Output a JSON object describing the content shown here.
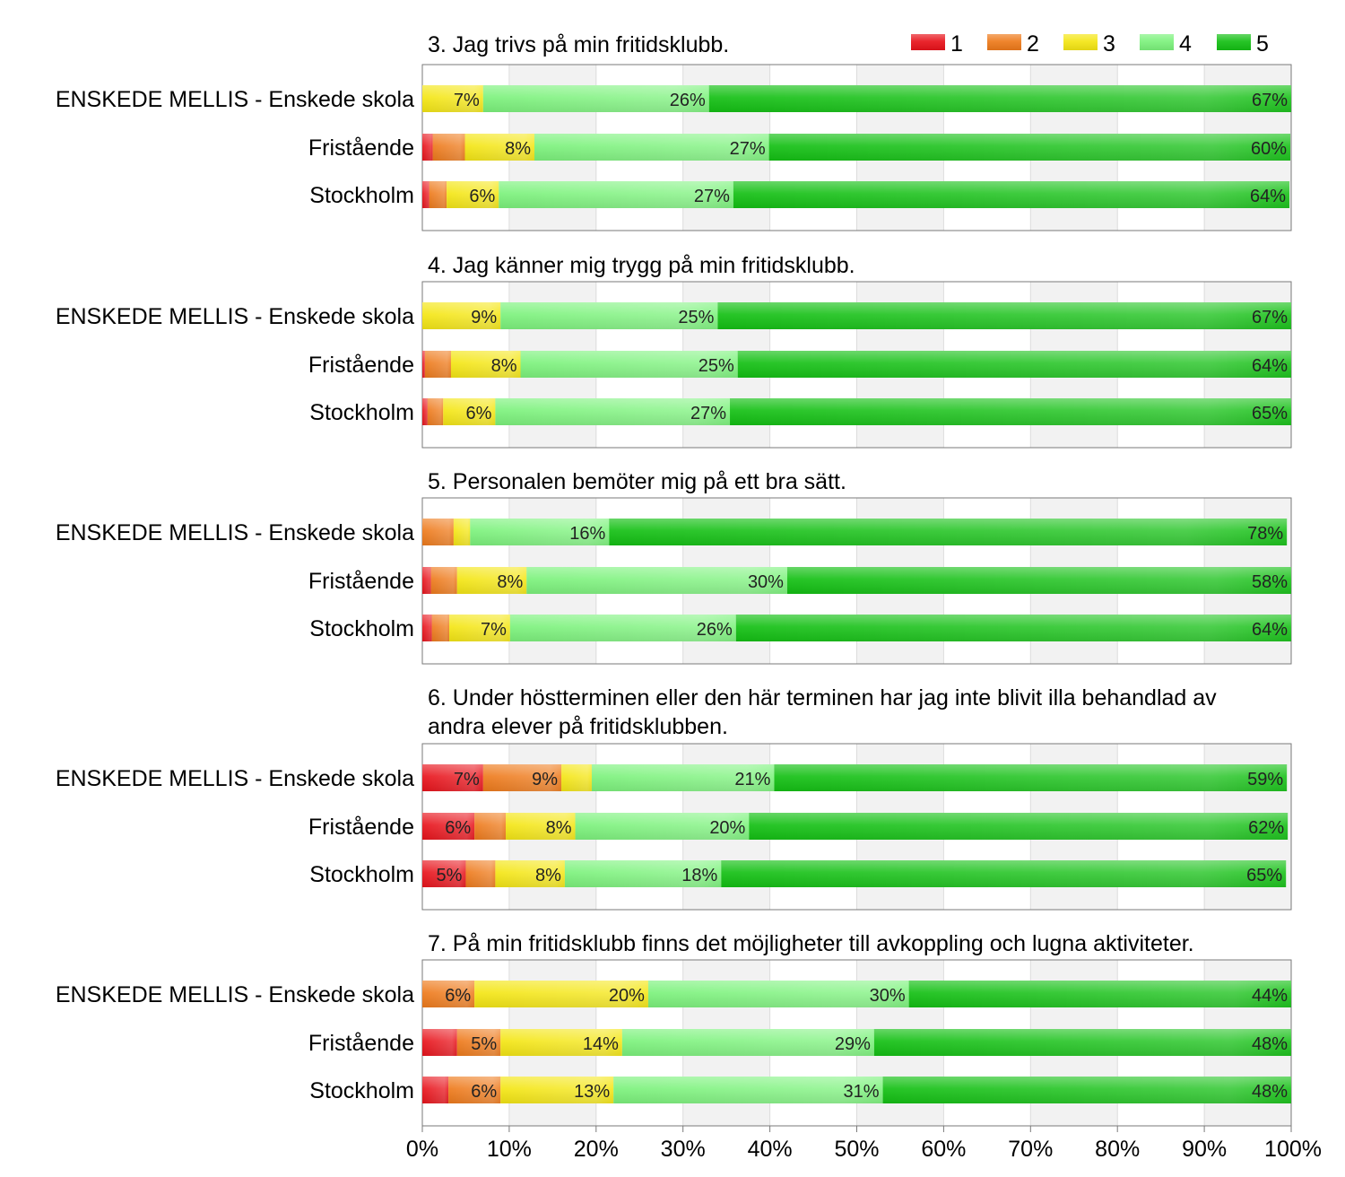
{
  "chart_data": {
    "type": "bar",
    "orientation": "horizontal",
    "stacked": true,
    "legend": {
      "placement": "top-right",
      "entries": [
        "1",
        "2",
        "3",
        "4",
        "5"
      ]
    },
    "colors": [
      "#e8131b",
      "#ee7a1b",
      "#f4e614",
      "#7cf27c",
      "#14c014"
    ],
    "x_axis": {
      "ticks": [
        "0%",
        "10%",
        "20%",
        "30%",
        "40%",
        "50%",
        "60%",
        "70%",
        "80%",
        "90%",
        "100%"
      ],
      "range": [
        0,
        100
      ]
    },
    "grid": true,
    "categories": [
      "ENSKEDE MELLIS - Enskede skola",
      "Fristående",
      "Stockholm"
    ],
    "panels": [
      {
        "title": [
          "3. Jag trivs på min fritidsklubb."
        ],
        "rows": [
          {
            "values": [
              0,
              0,
              7,
              26,
              67
            ],
            "labels": [
              "",
              "",
              "7%",
              "26%",
              "67%"
            ]
          },
          {
            "values": [
              1.2,
              3.7,
              8,
              27,
              60
            ],
            "labels": [
              "",
              "",
              "8%",
              "27%",
              "60%"
            ]
          },
          {
            "values": [
              0.8,
              2,
              6,
              27,
              64
            ],
            "labels": [
              "",
              "",
              "6%",
              "27%",
              "64%"
            ]
          }
        ]
      },
      {
        "title": [
          "4. Jag känner mig trygg på min fritidsklubb."
        ],
        "rows": [
          {
            "values": [
              0,
              0,
              9,
              25,
              67
            ],
            "labels": [
              "",
              "",
              "9%",
              "25%",
              "67%"
            ]
          },
          {
            "values": [
              0.3,
              3,
              8,
              25,
              64
            ],
            "labels": [
              "",
              "",
              "8%",
              "25%",
              "64%"
            ]
          },
          {
            "values": [
              0.6,
              1.8,
              6,
              27,
              65
            ],
            "labels": [
              "",
              "",
              "6%",
              "27%",
              "65%"
            ]
          }
        ]
      },
      {
        "title": [
          "5. Personalen bemöter mig på ett bra sätt."
        ],
        "rows": [
          {
            "values": [
              0,
              3.6,
              1.9,
              16,
              78
            ],
            "labels": [
              "",
              "",
              "",
              "16%",
              "78%"
            ]
          },
          {
            "values": [
              1,
              3,
              8,
              30,
              58
            ],
            "labels": [
              "",
              "",
              "8%",
              "30%",
              "58%"
            ]
          },
          {
            "values": [
              1.1,
              2,
              7,
              26,
              64
            ],
            "labels": [
              "",
              "",
              "7%",
              "26%",
              "64%"
            ]
          }
        ]
      },
      {
        "title": [
          "6. Under höstterminen eller den här terminen har jag inte blivit illa behandlad av",
          "andra elever på fritidsklubben."
        ],
        "rows": [
          {
            "values": [
              7,
              9,
              3.5,
              21,
              59
            ],
            "labels": [
              "7%",
              "9%",
              "",
              "21%",
              "59%"
            ]
          },
          {
            "values": [
              6,
              3.6,
              8,
              20,
              62
            ],
            "labels": [
              "6%",
              "",
              "8%",
              "20%",
              "62%"
            ]
          },
          {
            "values": [
              5,
              3.4,
              8,
              18,
              65
            ],
            "labels": [
              "5%",
              "",
              "8%",
              "18%",
              "65%"
            ]
          }
        ]
      },
      {
        "title": [
          "7. På min fritidsklubb finns det möjligheter till avkoppling och lugna aktiviteter."
        ],
        "rows": [
          {
            "values": [
              0,
              6,
              20,
              30,
              44
            ],
            "labels": [
              "",
              "6%",
              "20%",
              "30%",
              "44%"
            ]
          },
          {
            "values": [
              4,
              5,
              14,
              29,
              48
            ],
            "labels": [
              "",
              "5%",
              "14%",
              "29%",
              "48%"
            ]
          },
          {
            "values": [
              3,
              6,
              13,
              31,
              48
            ],
            "labels": [
              "",
              "6%",
              "13%",
              "31%",
              "48%"
            ]
          }
        ]
      }
    ]
  }
}
